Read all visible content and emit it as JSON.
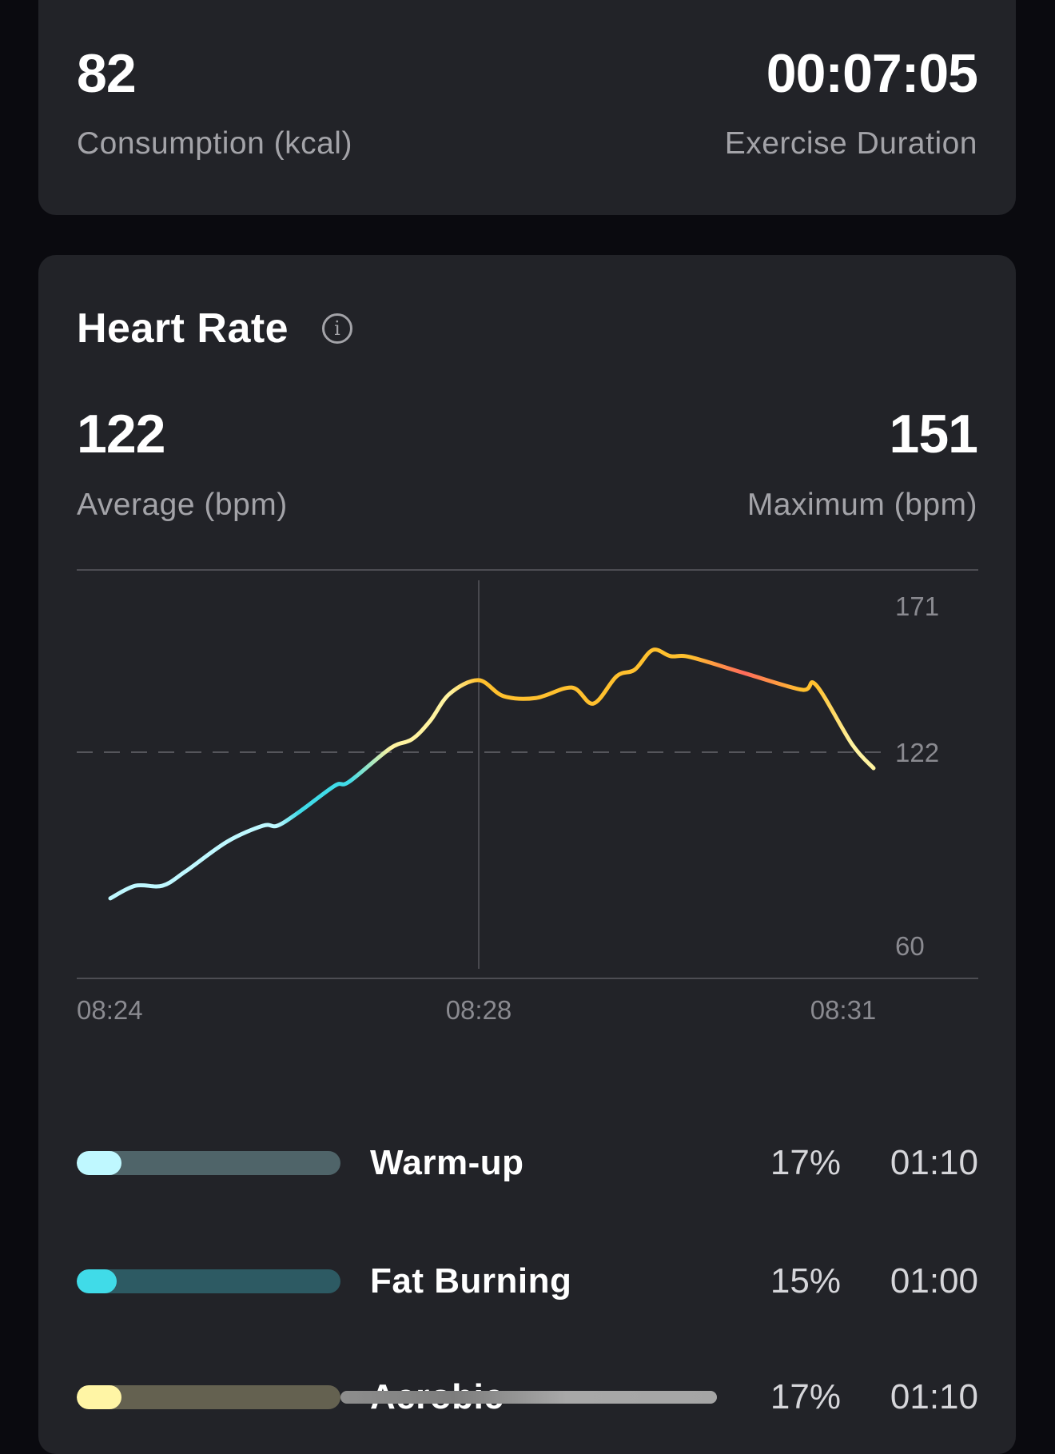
{
  "summary": {
    "consumption_value": "82",
    "consumption_label": "Consumption (kcal)",
    "duration_value": "00:07:05",
    "duration_label": "Exercise Duration"
  },
  "heart_rate": {
    "title": "Heart Rate",
    "info_icon": "info-icon",
    "average_value": "122",
    "average_label": "Average (bpm)",
    "maximum_value": "151",
    "maximum_label": "Maximum (bpm)"
  },
  "chart_data": {
    "type": "line",
    "y_ticks": [
      "171",
      "122",
      "60"
    ],
    "x_ticks": [
      "08:24",
      "08:28",
      "08:31"
    ],
    "reference_line": 122,
    "zone_colors": {
      "warmup": "#bff8ff",
      "fatburn": "#40dbe8",
      "aerobic": "#fff3a0",
      "anaerobic": "#ffc02e",
      "max": "#ff6a5c"
    },
    "points": [
      {
        "t": "08:24:20",
        "bpm": 74.5,
        "zone": "warmup"
      },
      {
        "t": "08:24:34",
        "bpm": 78.6,
        "zone": "warmup"
      },
      {
        "t": "08:24:49",
        "bpm": 78.6,
        "zone": "warmup"
      },
      {
        "t": "08:25:02",
        "bpm": 83.3,
        "zone": "warmup"
      },
      {
        "t": "08:25:25",
        "bpm": 92.9,
        "zone": "warmup"
      },
      {
        "t": "08:25:45",
        "bpm": 98.1,
        "zone": "warmup"
      },
      {
        "t": "08:25:53",
        "bpm": 98.1,
        "zone": "warmup"
      },
      {
        "t": "08:26:05",
        "bpm": 102.5,
        "zone": "fatburn"
      },
      {
        "t": "08:26:25",
        "bpm": 111.1,
        "zone": "fatburn"
      },
      {
        "t": "08:26:33",
        "bpm": 112.4,
        "zone": "fatburn"
      },
      {
        "t": "08:26:56",
        "bpm": 123.3,
        "zone": "aerobic"
      },
      {
        "t": "08:27:08",
        "bpm": 126.2,
        "zone": "aerobic"
      },
      {
        "t": "08:27:18",
        "bpm": 132.1,
        "zone": "aerobic"
      },
      {
        "t": "08:27:29",
        "bpm": 141.0,
        "zone": "aerobic"
      },
      {
        "t": "08:27:45",
        "bpm": 145.4,
        "zone": "anaerobic"
      },
      {
        "t": "08:27:59",
        "bpm": 140.2,
        "zone": "anaerobic"
      },
      {
        "t": "08:28:17",
        "bpm": 139.6,
        "zone": "anaerobic"
      },
      {
        "t": "08:28:37",
        "bpm": 143.0,
        "zone": "anaerobic"
      },
      {
        "t": "08:28:49",
        "bpm": 137.8,
        "zone": "anaerobic"
      },
      {
        "t": "08:29:02",
        "bpm": 146.7,
        "zone": "anaerobic"
      },
      {
        "t": "08:29:12",
        "bpm": 148.8,
        "zone": "anaerobic"
      },
      {
        "t": "08:29:22",
        "bpm": 155.2,
        "zone": "anaerobic"
      },
      {
        "t": "08:29:32",
        "bpm": 153.2,
        "zone": "anaerobic"
      },
      {
        "t": "08:29:43",
        "bpm": 152.9,
        "zone": "anaerobic"
      },
      {
        "t": "08:30:13",
        "bpm": 147.7,
        "zone": "max"
      },
      {
        "t": "08:30:45",
        "bpm": 142.3,
        "zone": "anaerobic"
      },
      {
        "t": "08:30:53",
        "bpm": 143.8,
        "zone": "anaerobic"
      },
      {
        "t": "08:31:13",
        "bpm": 124.6,
        "zone": "aerobic"
      },
      {
        "t": "08:31:25",
        "bpm": 116.8,
        "zone": "aerobic"
      }
    ]
  },
  "zones": [
    {
      "name": "Warm-up",
      "percent": "17%",
      "fraction": 0.17,
      "time": "01:10",
      "fill": "#bff8ff",
      "track": "#4f6469"
    },
    {
      "name": "Fat Burning",
      "percent": "15%",
      "fraction": 0.15,
      "time": "01:00",
      "fill": "#40dbe8",
      "track": "#2d5a63"
    },
    {
      "name": "Aerobic",
      "percent": "17%",
      "fraction": 0.17,
      "time": "01:10",
      "fill": "#fff5a5",
      "track": "#646150"
    }
  ]
}
